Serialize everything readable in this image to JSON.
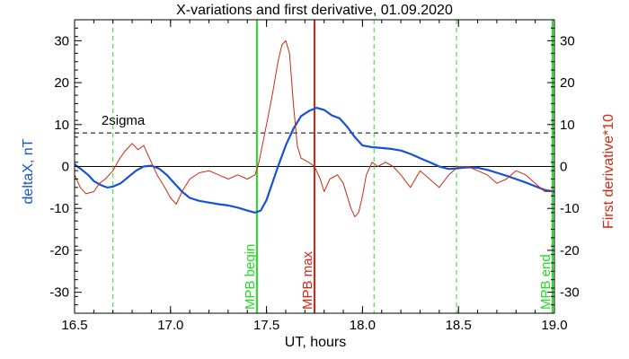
{
  "chart_data": {
    "type": "line",
    "title": "X-variations and first derivative, 01.09.2020",
    "xlabel": "UT, hours",
    "ylabel_left": "deltaX, nT",
    "ylabel_right": "First derivative*10",
    "xlim": [
      16.5,
      19.0
    ],
    "ylim": [
      -35,
      35
    ],
    "xticks": [
      "16.5",
      "17.0",
      "17.5",
      "18.0",
      "18.5",
      "19.0"
    ],
    "yticks": [
      "30",
      "20",
      "10",
      "0",
      "-10",
      "-20",
      "-30"
    ],
    "colors": {
      "deltaX": "#1452d8",
      "derivative": "#cc2a10",
      "mpb": "#22dd22",
      "max": "#dd2211",
      "sigma": "#000000",
      "zero": "#000000",
      "axis": "#000000"
    },
    "sigma": {
      "label": "2sigma",
      "value": 8
    },
    "markers": [
      {
        "label": "MPB begin",
        "x": 17.45,
        "kind": "mpb"
      },
      {
        "label": "MPB max",
        "x": 17.75,
        "kind": "max"
      },
      {
        "label": "MPB end",
        "x": 18.99,
        "kind": "mpb"
      }
    ],
    "dashed_green_x": [
      16.7,
      18.06,
      18.49
    ],
    "series": [
      {
        "name": "deltaX, nT",
        "axis": "left",
        "x": [
          16.5,
          16.53,
          16.57,
          16.6,
          16.64,
          16.67,
          16.7,
          16.74,
          16.78,
          16.82,
          16.86,
          16.9,
          16.94,
          16.98,
          17.02,
          17.06,
          17.1,
          17.15,
          17.2,
          17.25,
          17.3,
          17.35,
          17.4,
          17.44,
          17.47,
          17.5,
          17.53,
          17.56,
          17.6,
          17.64,
          17.68,
          17.72,
          17.76,
          17.8,
          17.84,
          17.88,
          17.92,
          17.96,
          18.0,
          18.05,
          18.1,
          18.15,
          18.2,
          18.25,
          18.3,
          18.35,
          18.4,
          18.45,
          18.5,
          18.55,
          18.6,
          18.65,
          18.7,
          18.75,
          18.8,
          18.85,
          18.9,
          18.95,
          19.0
        ],
        "y": [
          0.5,
          -0.5,
          -2,
          -3.5,
          -4.5,
          -5,
          -4.8,
          -4,
          -2.5,
          -1,
          0,
          0.2,
          -0.5,
          -2,
          -4,
          -6,
          -7.5,
          -8.2,
          -8.6,
          -9,
          -9.3,
          -9.8,
          -10.5,
          -11,
          -10.5,
          -8,
          -4,
          0,
          5,
          9,
          12,
          13.2,
          14,
          13.5,
          12.2,
          11.5,
          9.5,
          7,
          5,
          4.6,
          4.4,
          4.2,
          3.8,
          3,
          2,
          1,
          0,
          -0.6,
          -0.4,
          -0.2,
          -0.3,
          -0.8,
          -1.5,
          -2.2,
          -3,
          -3.8,
          -4.7,
          -5.6,
          -6
        ]
      },
      {
        "name": "First derivative*10",
        "axis": "right",
        "x": [
          16.5,
          16.53,
          16.56,
          16.6,
          16.63,
          16.66,
          16.7,
          16.73,
          16.76,
          16.8,
          16.83,
          16.86,
          16.9,
          16.93,
          16.97,
          17.0,
          17.03,
          17.06,
          17.1,
          17.15,
          17.2,
          17.25,
          17.3,
          17.35,
          17.4,
          17.44,
          17.46,
          17.5,
          17.53,
          17.56,
          17.58,
          17.6,
          17.62,
          17.64,
          17.66,
          17.68,
          17.72,
          17.75,
          17.78,
          17.8,
          17.83,
          17.87,
          17.9,
          17.92,
          17.94,
          17.96,
          17.98,
          18.0,
          18.02,
          18.05,
          18.08,
          18.12,
          18.16,
          18.2,
          18.25,
          18.3,
          18.35,
          18.4,
          18.45,
          18.5,
          18.55,
          18.6,
          18.65,
          18.7,
          18.75,
          18.8,
          18.85,
          18.9,
          18.95,
          19.0
        ],
        "y": [
          -2,
          -5,
          -6.5,
          -6,
          -4,
          -3,
          -1,
          1.5,
          3.5,
          5.5,
          4,
          5,
          1,
          -2,
          -5,
          -7.5,
          -9,
          -6,
          -3,
          -1.5,
          -1,
          -2,
          -3,
          -2,
          -3,
          -2,
          1,
          10,
          17,
          25,
          29,
          30,
          27,
          15,
          5,
          2,
          1,
          0,
          -3,
          -6,
          -3,
          -2,
          -4,
          -7,
          -10,
          -12,
          -11,
          -7,
          -2,
          1,
          0,
          1,
          0,
          -2,
          -5,
          -1,
          -3,
          -5,
          -2,
          0,
          0,
          -1,
          -2,
          -4,
          -3,
          -1,
          -2,
          -4,
          -6,
          -6
        ]
      }
    ]
  }
}
